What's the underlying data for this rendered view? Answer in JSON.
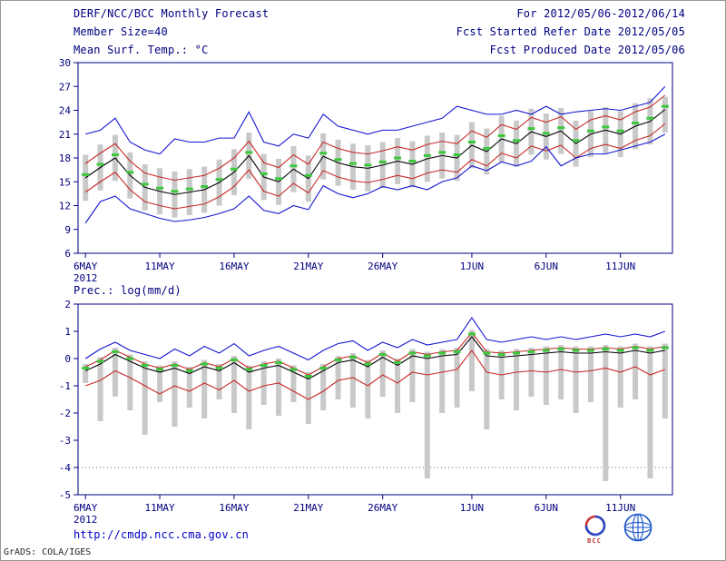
{
  "header": {
    "left": {
      "title": "DERF/NCC/BCC Monthly Forecast",
      "member_size": "Member Size=40"
    },
    "right": {
      "for_period": "For 2012/05/06-2012/06/14",
      "started": "Fcst Started Refer Date 2012/05/05",
      "produced": "Fcst Produced Date 2012/05/06"
    }
  },
  "footer": {
    "url": "http://cmdp.ncc.cma.gov.cn",
    "credit": "GrADS: COLA/IGES",
    "bcc_label": "BCC"
  },
  "colors": {
    "text": "#000080",
    "axis": "#000080",
    "ensemble_bar": "#c9c9c9",
    "max_min_line": "#1414d2",
    "quartile_line": "#c82828",
    "mean_line": "#000000",
    "median_marker": "#3cc83c",
    "url_text": "#0000cd"
  },
  "chart_data": [
    {
      "type": "line",
      "title": "Mean Surf. Temp.: °C",
      "xlabel": "",
      "ylabel": "°C",
      "ylim": [
        6,
        30
      ],
      "yticks": [
        6,
        9,
        12,
        15,
        18,
        21,
        24,
        27,
        30
      ],
      "grid": "off",
      "legend_position": "none",
      "n": 40,
      "year": "2012",
      "xticks": [
        {
          "pos": 0,
          "label": "6MAY"
        },
        {
          "pos": 5,
          "label": "11MAY"
        },
        {
          "pos": 10,
          "label": "16MAY"
        },
        {
          "pos": 15,
          "label": "21MAY"
        },
        {
          "pos": 20,
          "label": "26MAY"
        },
        {
          "pos": 26,
          "label": "1JUN"
        },
        {
          "pos": 31,
          "label": "6JUN"
        },
        {
          "pos": 36,
          "label": "11JUN"
        }
      ],
      "gridlines": [],
      "bars": {
        "name": "ensemble-spread",
        "color": "#c9c9c9",
        "low": [
          12.6,
          13.9,
          15.1,
          12.9,
          11.4,
          10.9,
          10.5,
          10.8,
          11.1,
          12,
          13.3,
          15.4,
          12.7,
          12.1,
          13.7,
          12.5,
          15.3,
          14.5,
          14,
          13.8,
          14.2,
          14.7,
          14.3,
          15,
          15.4,
          15.1,
          16.7,
          15.9,
          17.5,
          16.9,
          18.4,
          17.8,
          18.5,
          16.9,
          18.1,
          18.6,
          18.1,
          19.1,
          19.7,
          21.2
        ],
        "high": [
          18.4,
          19.7,
          20.9,
          18.7,
          17.2,
          16.7,
          16.3,
          16.6,
          16.9,
          17.8,
          19.1,
          21.2,
          18.5,
          17.9,
          19.5,
          18.3,
          21.1,
          20.3,
          19.8,
          19.6,
          20,
          20.5,
          20.1,
          20.8,
          21.2,
          20.9,
          22.5,
          21.7,
          23.3,
          22.7,
          24.2,
          23.6,
          24.3,
          22.7,
          23.9,
          24.4,
          23.9,
          24.9,
          25.5,
          25.7
        ]
      },
      "series": [
        {
          "name": "ensemble-max",
          "color": "#1414d2",
          "values": [
            21,
            21.5,
            23,
            20,
            19,
            18.5,
            20.4,
            20,
            20,
            20.5,
            20.5,
            23.8,
            20,
            19.5,
            21,
            20.5,
            23.5,
            22,
            21.5,
            21,
            21.5,
            21.5,
            22,
            22.5,
            23,
            24.5,
            24,
            23.5,
            23.5,
            24,
            23.5,
            24.5,
            23.5,
            23.8,
            24,
            24.2,
            24,
            24.5,
            25,
            27
          ]
        },
        {
          "name": "upper-quartile",
          "color": "#c82828",
          "values": [
            17.3,
            18.6,
            19.8,
            17.6,
            16.1,
            15.6,
            15.2,
            15.5,
            15.8,
            16.7,
            18,
            20.1,
            17.4,
            16.8,
            18.4,
            17.2,
            20,
            19.2,
            18.7,
            18.5,
            18.9,
            19.4,
            19,
            19.7,
            20.1,
            19.8,
            21.4,
            20.6,
            22.2,
            21.6,
            23.1,
            22.5,
            23.2,
            21.6,
            22.8,
            23.3,
            22.8,
            23.8,
            24.4,
            25.9
          ]
        },
        {
          "name": "ensemble-mean",
          "color": "#000000",
          "values": [
            15.5,
            16.8,
            18,
            15.8,
            14.3,
            13.8,
            13.4,
            13.7,
            14,
            14.9,
            16.2,
            18.3,
            15.6,
            15,
            16.6,
            15.4,
            18.2,
            17.4,
            16.9,
            16.7,
            17.1,
            17.6,
            17.2,
            17.9,
            18.3,
            18,
            19.6,
            18.8,
            20.4,
            19.8,
            21.3,
            20.7,
            21.4,
            19.8,
            21,
            21.5,
            21,
            22,
            22.6,
            24.1
          ]
        },
        {
          "name": "lower-quartile",
          "color": "#c82828",
          "values": [
            13.7,
            15,
            16.2,
            14,
            12.5,
            12,
            11.6,
            11.9,
            12.2,
            13.1,
            14.4,
            16.5,
            13.8,
            13.2,
            14.8,
            13.6,
            16.4,
            15.6,
            15.1,
            14.9,
            15.3,
            15.8,
            15.4,
            16.1,
            16.5,
            16.2,
            17.8,
            17,
            18.6,
            18,
            19.5,
            18.9,
            19.6,
            18,
            19.2,
            19.7,
            19.2,
            20.2,
            20.8,
            22.3
          ]
        },
        {
          "name": "ensemble-min",
          "color": "#1414d2",
          "values": [
            9.8,
            12.5,
            13.2,
            11.6,
            11,
            10.4,
            10,
            10.2,
            10.5,
            11,
            11.6,
            13.2,
            11.4,
            11,
            12,
            11.5,
            14.5,
            13.5,
            13,
            13.5,
            14.4,
            14,
            14.5,
            14,
            15,
            15.5,
            17,
            16.4,
            17.5,
            17,
            17.6,
            19.4,
            17,
            18,
            18.5,
            18.5,
            19,
            19.5,
            20,
            21
          ]
        }
      ],
      "markers": {
        "name": "ensemble-median",
        "color": "#3cc83c",
        "values": [
          15.9,
          17.2,
          18.4,
          16.2,
          14.7,
          14.2,
          13.8,
          14.1,
          14.4,
          15.3,
          16.6,
          18.7,
          16,
          15.4,
          17,
          15.8,
          18.6,
          17.8,
          17.3,
          17.1,
          17.5,
          18,
          17.6,
          18.3,
          18.7,
          18.4,
          20,
          19.2,
          20.8,
          20.2,
          21.7,
          21.1,
          21.8,
          20.2,
          21.4,
          21.9,
          21.4,
          22.4,
          23,
          24.5
        ]
      }
    },
    {
      "type": "line",
      "title": "Prec.: log(mm/d)",
      "xlabel": "",
      "ylabel": "log(mm/d)",
      "ylim": [
        -5,
        2
      ],
      "yticks": [
        -5,
        -4,
        -3,
        -2,
        -1,
        0,
        1,
        2
      ],
      "grid": "off",
      "legend_position": "none",
      "n": 40,
      "year": "2012",
      "xticks": [
        {
          "pos": 0,
          "label": "6MAY"
        },
        {
          "pos": 5,
          "label": "11MAY"
        },
        {
          "pos": 10,
          "label": "16MAY"
        },
        {
          "pos": 15,
          "label": "21MAY"
        },
        {
          "pos": 20,
          "label": "26MAY"
        },
        {
          "pos": 26,
          "label": "1JUN"
        },
        {
          "pos": 31,
          "label": "6JUN"
        },
        {
          "pos": 36,
          "label": "11JUN"
        }
      ],
      "gridlines": [
        -4
      ],
      "bars": {
        "name": "ensemble-spread",
        "color": "#c9c9c9",
        "low": [
          -0.9,
          -2.3,
          -1.4,
          -1.9,
          -2.8,
          -1.6,
          -2.5,
          -1.8,
          -2.2,
          -1.5,
          -2,
          -2.6,
          -1.7,
          -2.1,
          -1.6,
          -2.4,
          -1.9,
          -1.5,
          -1.8,
          -2.2,
          -1.4,
          -2,
          -1.6,
          -4.4,
          -2,
          -1.8,
          -1.2,
          -2.6,
          -1.5,
          -1.9,
          -1.4,
          -1.7,
          -1.5,
          -2,
          -1.6,
          -4.5,
          -1.8,
          -1.5,
          -4.4,
          -2.2
        ],
        "high": [
          -0.2,
          0.05,
          0.4,
          0.15,
          -0.1,
          -0.25,
          -0.1,
          -0.3,
          -0.05,
          -0.2,
          0.1,
          -0.25,
          -0.1,
          0,
          -0.25,
          -0.5,
          -0.2,
          0.1,
          0.2,
          -0.05,
          0.3,
          0,
          0.35,
          0.25,
          0.35,
          0.4,
          1.05,
          0.35,
          0.3,
          0.35,
          0.4,
          0.45,
          0.5,
          0.45,
          0.45,
          0.5,
          0.45,
          0.55,
          0.45,
          0.55
        ]
      },
      "series": [
        {
          "name": "ensemble-max",
          "color": "#1414d2",
          "values": [
            0,
            0.35,
            0.6,
            0.3,
            0.15,
            0,
            0.35,
            0.1,
            0.45,
            0.2,
            0.55,
            0.1,
            0.3,
            0.45,
            0.2,
            -0.05,
            0.3,
            0.55,
            0.65,
            0.3,
            0.6,
            0.4,
            0.7,
            0.5,
            0.6,
            0.7,
            1.5,
            0.7,
            0.6,
            0.7,
            0.8,
            0.7,
            0.8,
            0.7,
            0.8,
            0.9,
            0.8,
            0.9,
            0.8,
            1
          ]
        },
        {
          "name": "upper-quartile",
          "color": "#c82828",
          "values": [
            -0.3,
            -0.05,
            0.3,
            0.05,
            -0.2,
            -0.35,
            -0.2,
            -0.4,
            -0.15,
            -0.3,
            0,
            -0.35,
            -0.2,
            -0.1,
            -0.35,
            -0.6,
            -0.3,
            0,
            0.1,
            -0.15,
            0.2,
            -0.1,
            0.25,
            0.15,
            0.25,
            0.3,
            0.95,
            0.25,
            0.2,
            0.25,
            0.3,
            0.35,
            0.4,
            0.35,
            0.35,
            0.4,
            0.35,
            0.45,
            0.35,
            0.45
          ]
        },
        {
          "name": "ensemble-mean",
          "color": "#000000",
          "values": [
            -0.45,
            -0.2,
            0.15,
            -0.1,
            -0.35,
            -0.5,
            -0.35,
            -0.55,
            -0.3,
            -0.45,
            -0.15,
            -0.5,
            -0.35,
            -0.25,
            -0.5,
            -0.75,
            -0.45,
            -0.15,
            -0.05,
            -0.3,
            0.05,
            -0.25,
            0.1,
            0,
            0.1,
            0.15,
            0.8,
            0.1,
            0.05,
            0.1,
            0.15,
            0.2,
            0.25,
            0.2,
            0.2,
            0.25,
            0.2,
            0.3,
            0.2,
            0.3
          ]
        },
        {
          "name": "lower-quartile",
          "color": "#c82828",
          "values": [
            -1,
            -0.8,
            -0.45,
            -0.7,
            -1,
            -1.3,
            -1,
            -1.2,
            -0.9,
            -1.15,
            -0.8,
            -1.2,
            -1,
            -0.9,
            -1.2,
            -1.5,
            -1.2,
            -0.8,
            -0.7,
            -1,
            -0.6,
            -0.9,
            -0.5,
            -0.6,
            -0.5,
            -0.4,
            0.3,
            -0.5,
            -0.6,
            -0.5,
            -0.45,
            -0.5,
            -0.4,
            -0.5,
            -0.45,
            -0.35,
            -0.5,
            -0.3,
            -0.6,
            -0.4
          ]
        }
      ],
      "markers": {
        "name": "ensemble-median",
        "color": "#3cc83c",
        "values": [
          -0.35,
          -0.1,
          0.25,
          0,
          -0.25,
          -0.4,
          -0.25,
          -0.45,
          -0.2,
          -0.35,
          -0.05,
          -0.4,
          -0.25,
          -0.15,
          -0.4,
          -0.65,
          -0.35,
          -0.05,
          0.05,
          -0.2,
          0.15,
          -0.15,
          0.2,
          0.1,
          0.2,
          0.25,
          0.9,
          0.2,
          0.15,
          0.2,
          0.25,
          0.3,
          0.35,
          0.3,
          0.3,
          0.35,
          0.3,
          0.4,
          0.3,
          0.4
        ]
      }
    }
  ]
}
